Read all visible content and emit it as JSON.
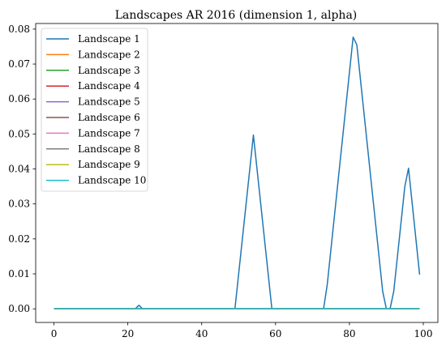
{
  "chart_data": {
    "type": "line",
    "title": "Landscapes AR 2016 (dimension 1, alpha)",
    "xlabel": "",
    "ylabel": "",
    "xlim": [
      -4.95,
      103.95
    ],
    "ylim": [
      -0.0039,
      0.0816
    ],
    "x_ticks": [
      0,
      20,
      40,
      60,
      80,
      100
    ],
    "x_tick_labels": [
      "0",
      "20",
      "40",
      "60",
      "80",
      "100"
    ],
    "y_ticks": [
      0.0,
      0.01,
      0.02,
      0.03,
      0.04,
      0.05,
      0.06,
      0.07,
      0.08
    ],
    "y_tick_labels": [
      "0.00",
      "0.01",
      "0.02",
      "0.03",
      "0.04",
      "0.05",
      "0.06",
      "0.07",
      "0.08"
    ],
    "grid": false,
    "legend_position": "upper-left",
    "series": [
      {
        "name": "Landscape 1",
        "color": "#1f77b4",
        "points": [
          [
            0,
            0
          ],
          [
            22,
            0
          ],
          [
            23,
            0.001
          ],
          [
            24,
            0
          ],
          [
            49,
            0
          ],
          [
            54,
            0.0497
          ],
          [
            59,
            0
          ],
          [
            73,
            0
          ],
          [
            74,
            0.007
          ],
          [
            81,
            0.0777
          ],
          [
            82,
            0.0755
          ],
          [
            89,
            0.005
          ],
          [
            90,
            0
          ],
          [
            91,
            0
          ],
          [
            92,
            0.005
          ],
          [
            95,
            0.035
          ],
          [
            96,
            0.0402
          ],
          [
            99,
            0.0098
          ]
        ]
      },
      {
        "name": "Landscape 2",
        "color": "#ff7f0e",
        "points": [
          [
            0,
            0
          ],
          [
            99,
            0
          ]
        ]
      },
      {
        "name": "Landscape 3",
        "color": "#2ca02c",
        "points": [
          [
            0,
            0
          ],
          [
            99,
            0
          ]
        ]
      },
      {
        "name": "Landscape 4",
        "color": "#d62728",
        "points": [
          [
            0,
            0
          ],
          [
            99,
            0
          ]
        ]
      },
      {
        "name": "Landscape 5",
        "color": "#9467bd",
        "points": [
          [
            0,
            0
          ],
          [
            99,
            0
          ]
        ]
      },
      {
        "name": "Landscape 6",
        "color": "#8c564b",
        "points": [
          [
            0,
            0
          ],
          [
            99,
            0
          ]
        ]
      },
      {
        "name": "Landscape 7",
        "color": "#e377c2",
        "points": [
          [
            0,
            0
          ],
          [
            99,
            0
          ]
        ]
      },
      {
        "name": "Landscape 8",
        "color": "#7f7f7f",
        "points": [
          [
            0,
            0
          ],
          [
            99,
            0
          ]
        ]
      },
      {
        "name": "Landscape 9",
        "color": "#bcbd22",
        "points": [
          [
            0,
            0
          ],
          [
            99,
            0
          ]
        ]
      },
      {
        "name": "Landscape 10",
        "color": "#17becf",
        "points": [
          [
            0,
            0
          ],
          [
            99,
            0
          ]
        ]
      }
    ]
  }
}
